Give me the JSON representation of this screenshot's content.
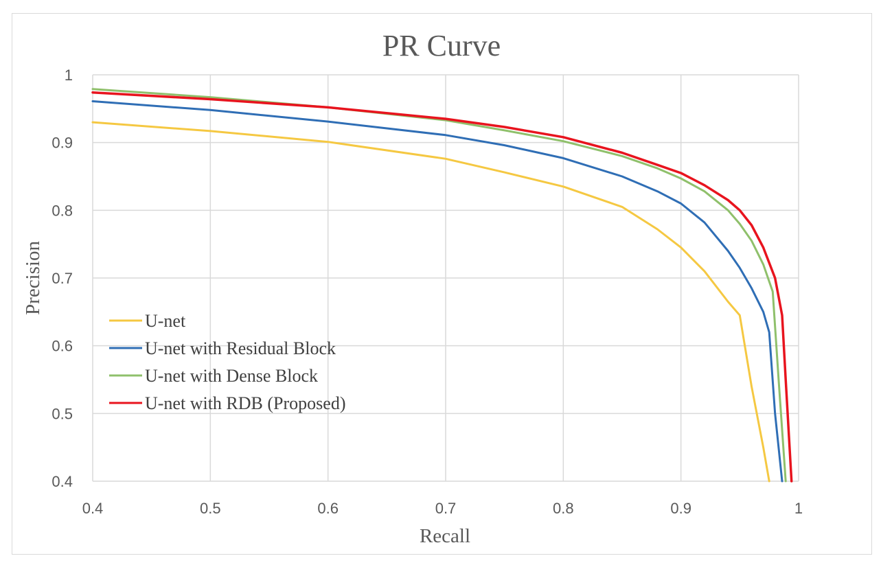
{
  "chart_data": {
    "type": "line",
    "title": "PR Curve",
    "xlabel": "Recall",
    "ylabel": "Precision",
    "xlim": [
      0.4,
      1.0
    ],
    "ylim": [
      0.4,
      1.0
    ],
    "x_ticks": [
      "0.4",
      "0.5",
      "0.6",
      "0.7",
      "0.8",
      "0.9",
      "1"
    ],
    "y_ticks": [
      "0.4",
      "0.5",
      "0.6",
      "0.7",
      "0.8",
      "0.9",
      "1"
    ],
    "grid": true,
    "legend_position": "center-left",
    "series": [
      {
        "name": "U-net",
        "color": "#f5c842",
        "x": [
          0.4,
          0.5,
          0.6,
          0.7,
          0.75,
          0.8,
          0.85,
          0.88,
          0.9,
          0.92,
          0.94,
          0.95,
          0.96,
          0.97,
          0.975
        ],
        "y": [
          0.93,
          0.917,
          0.901,
          0.876,
          0.856,
          0.835,
          0.805,
          0.772,
          0.745,
          0.71,
          0.665,
          0.645,
          0.54,
          0.45,
          0.4
        ]
      },
      {
        "name": "U-net with Residual Block",
        "color": "#2f6eb5",
        "x": [
          0.4,
          0.5,
          0.6,
          0.7,
          0.75,
          0.8,
          0.85,
          0.88,
          0.9,
          0.92,
          0.94,
          0.95,
          0.96,
          0.97,
          0.975,
          0.98,
          0.986
        ],
        "y": [
          0.961,
          0.948,
          0.931,
          0.911,
          0.896,
          0.877,
          0.85,
          0.828,
          0.81,
          0.782,
          0.74,
          0.715,
          0.685,
          0.65,
          0.62,
          0.5,
          0.4
        ]
      },
      {
        "name": "U-net with Dense Block",
        "color": "#8fc06b",
        "x": [
          0.4,
          0.5,
          0.6,
          0.7,
          0.75,
          0.8,
          0.85,
          0.88,
          0.9,
          0.92,
          0.94,
          0.95,
          0.96,
          0.97,
          0.978,
          0.983,
          0.989
        ],
        "y": [
          0.979,
          0.967,
          0.952,
          0.933,
          0.918,
          0.902,
          0.88,
          0.862,
          0.847,
          0.828,
          0.8,
          0.78,
          0.755,
          0.72,
          0.68,
          0.55,
          0.4
        ]
      },
      {
        "name": "U-net with RDB (Proposed)",
        "color": "#e8141e",
        "x": [
          0.4,
          0.5,
          0.6,
          0.7,
          0.75,
          0.8,
          0.85,
          0.88,
          0.9,
          0.92,
          0.94,
          0.95,
          0.96,
          0.97,
          0.98,
          0.986,
          0.989,
          0.994
        ],
        "y": [
          0.974,
          0.964,
          0.952,
          0.935,
          0.923,
          0.908,
          0.885,
          0.867,
          0.855,
          0.837,
          0.815,
          0.8,
          0.778,
          0.745,
          0.7,
          0.645,
          0.55,
          0.4
        ]
      }
    ]
  }
}
